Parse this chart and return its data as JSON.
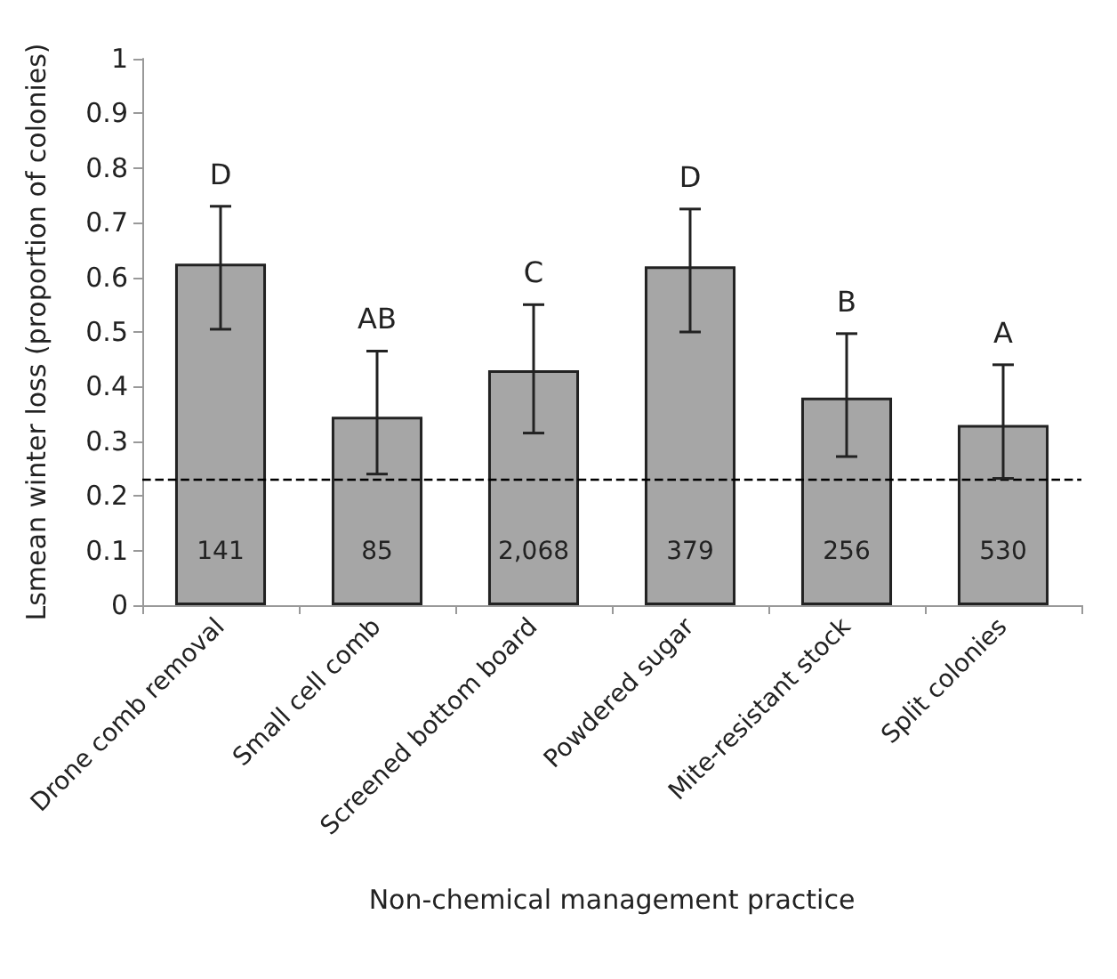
{
  "chart_data": {
    "type": "bar",
    "xlabel": "Non-chemical management practice",
    "ylabel": "Lsmean winter loss (proportion of colonies)",
    "categories": [
      "Drone comb removal",
      "Small cell comb",
      "Screened bottom board",
      "Powdered sugar",
      "Mite-resistant stock",
      "Split colonies"
    ],
    "values": [
      0.625,
      0.345,
      0.43,
      0.62,
      0.38,
      0.33
    ],
    "errors": [
      [
        0.505,
        0.73
      ],
      [
        0.24,
        0.465
      ],
      [
        0.315,
        0.55
      ],
      [
        0.5,
        0.725
      ],
      [
        0.272,
        0.497
      ],
      [
        0.232,
        0.44
      ]
    ],
    "color": "#a6a6a6",
    "ylim": [
      0,
      1
    ],
    "yticks": [
      0,
      0.1,
      0.2,
      0.3,
      0.4,
      0.5,
      0.6,
      0.7,
      0.8,
      0.9,
      1
    ],
    "grid": false,
    "ref_lines": [
      {
        "axis": "y",
        "value": 0.23,
        "line_style": "dashed",
        "color": "#000000"
      }
    ],
    "annotations": [
      "D",
      "AB",
      "C",
      "D",
      "B",
      "A",
      "141",
      "85",
      "2,068",
      "379",
      "256",
      "530"
    ]
  }
}
